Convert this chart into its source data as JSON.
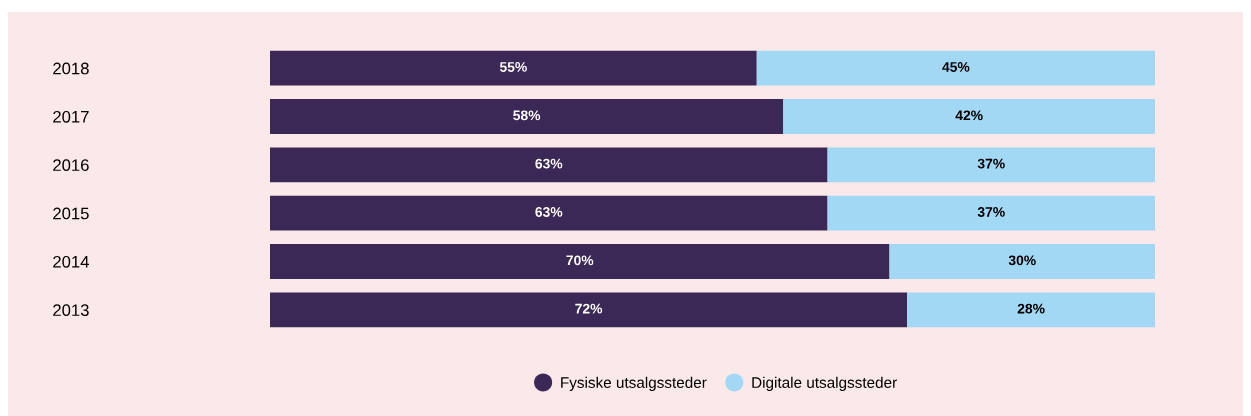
{
  "chart_data": {
    "type": "bar",
    "orientation": "horizontal",
    "stacked": true,
    "categories": [
      "2018",
      "2017",
      "2016",
      "2015",
      "2014",
      "2013"
    ],
    "series": [
      {
        "name": "Fysiske utsalgssteder",
        "color": "#3b2856",
        "values": [
          55,
          58,
          63,
          63,
          70,
          72
        ],
        "value_labels": [
          "55%",
          "58%",
          "63%",
          "63%",
          "70%",
          "72%"
        ]
      },
      {
        "name": "Digitale utsalgssteder",
        "color": "#a3d8f5",
        "values": [
          45,
          42,
          37,
          37,
          30,
          28
        ],
        "value_labels": [
          "45%",
          "42%",
          "37%",
          "37%",
          "30%",
          "28%"
        ]
      }
    ],
    "legend": "bottom",
    "grid": false,
    "tick_labels": "y"
  }
}
